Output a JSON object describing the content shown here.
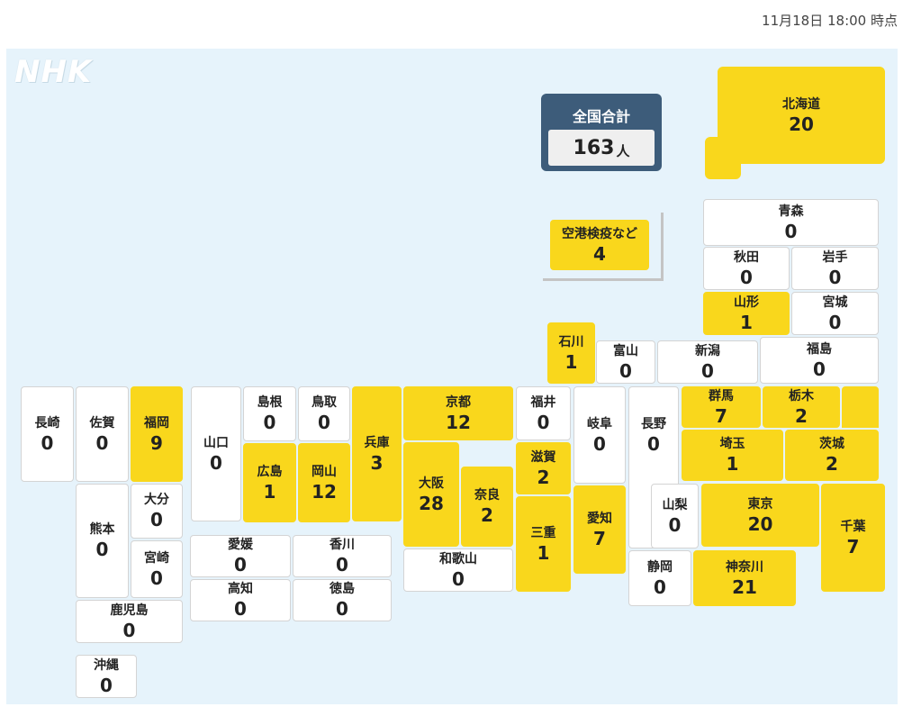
{
  "timestamp": "11月18日 18:00 時点",
  "logo": "NHK",
  "total": {
    "label": "全国合計",
    "value": "163",
    "unit": "人"
  },
  "airport": {
    "name": "空港検疫など",
    "count": "4"
  },
  "prefectures": {
    "hokkaido": {
      "name": "北海道",
      "count": "20"
    },
    "aomori": {
      "name": "青森",
      "count": "0"
    },
    "akita": {
      "name": "秋田",
      "count": "0"
    },
    "iwate": {
      "name": "岩手",
      "count": "0"
    },
    "yamagata": {
      "name": "山形",
      "count": "1"
    },
    "miyagi": {
      "name": "宮城",
      "count": "0"
    },
    "ishikawa": {
      "name": "石川",
      "count": "1"
    },
    "toyama": {
      "name": "富山",
      "count": "0"
    },
    "niigata": {
      "name": "新潟",
      "count": "0"
    },
    "fukushima": {
      "name": "福島",
      "count": "0"
    },
    "nagasaki": {
      "name": "長崎",
      "count": "0"
    },
    "saga": {
      "name": "佐賀",
      "count": "0"
    },
    "fukuoka": {
      "name": "福岡",
      "count": "9"
    },
    "yamaguchi": {
      "name": "山口",
      "count": "0"
    },
    "shimane": {
      "name": "島根",
      "count": "0"
    },
    "tottori": {
      "name": "鳥取",
      "count": "0"
    },
    "hyogo": {
      "name": "兵庫",
      "count": "3"
    },
    "kyoto": {
      "name": "京都",
      "count": "12"
    },
    "fukui": {
      "name": "福井",
      "count": "0"
    },
    "gifu": {
      "name": "岐阜",
      "count": "0"
    },
    "nagano": {
      "name": "長野",
      "count": "0"
    },
    "gunma": {
      "name": "群馬",
      "count": "7"
    },
    "tochigi": {
      "name": "栃木",
      "count": "2"
    },
    "hiroshima": {
      "name": "広島",
      "count": "1"
    },
    "okayama": {
      "name": "岡山",
      "count": "12"
    },
    "osaka": {
      "name": "大阪",
      "count": "28"
    },
    "nara": {
      "name": "奈良",
      "count": "2"
    },
    "shiga": {
      "name": "滋賀",
      "count": "2"
    },
    "saitama": {
      "name": "埼玉",
      "count": "1"
    },
    "ibaraki": {
      "name": "茨城",
      "count": "2"
    },
    "kumamoto": {
      "name": "熊本",
      "count": "0"
    },
    "oita": {
      "name": "大分",
      "count": "0"
    },
    "miyazaki": {
      "name": "宮崎",
      "count": "0"
    },
    "mie": {
      "name": "三重",
      "count": "1"
    },
    "aichi": {
      "name": "愛知",
      "count": "7"
    },
    "yamanashi": {
      "name": "山梨",
      "count": "0"
    },
    "tokyo": {
      "name": "東京",
      "count": "20"
    },
    "chiba": {
      "name": "千葉",
      "count": "7"
    },
    "ehime": {
      "name": "愛媛",
      "count": "0"
    },
    "kagawa": {
      "name": "香川",
      "count": "0"
    },
    "wakayama": {
      "name": "和歌山",
      "count": "0"
    },
    "shizuoka": {
      "name": "静岡",
      "count": "0"
    },
    "kanagawa": {
      "name": "神奈川",
      "count": "21"
    },
    "kochi": {
      "name": "高知",
      "count": "0"
    },
    "tokushima": {
      "name": "徳島",
      "count": "0"
    },
    "kagoshima": {
      "name": "鹿児島",
      "count": "0"
    },
    "okinawa": {
      "name": "沖縄",
      "count": "0"
    }
  }
}
